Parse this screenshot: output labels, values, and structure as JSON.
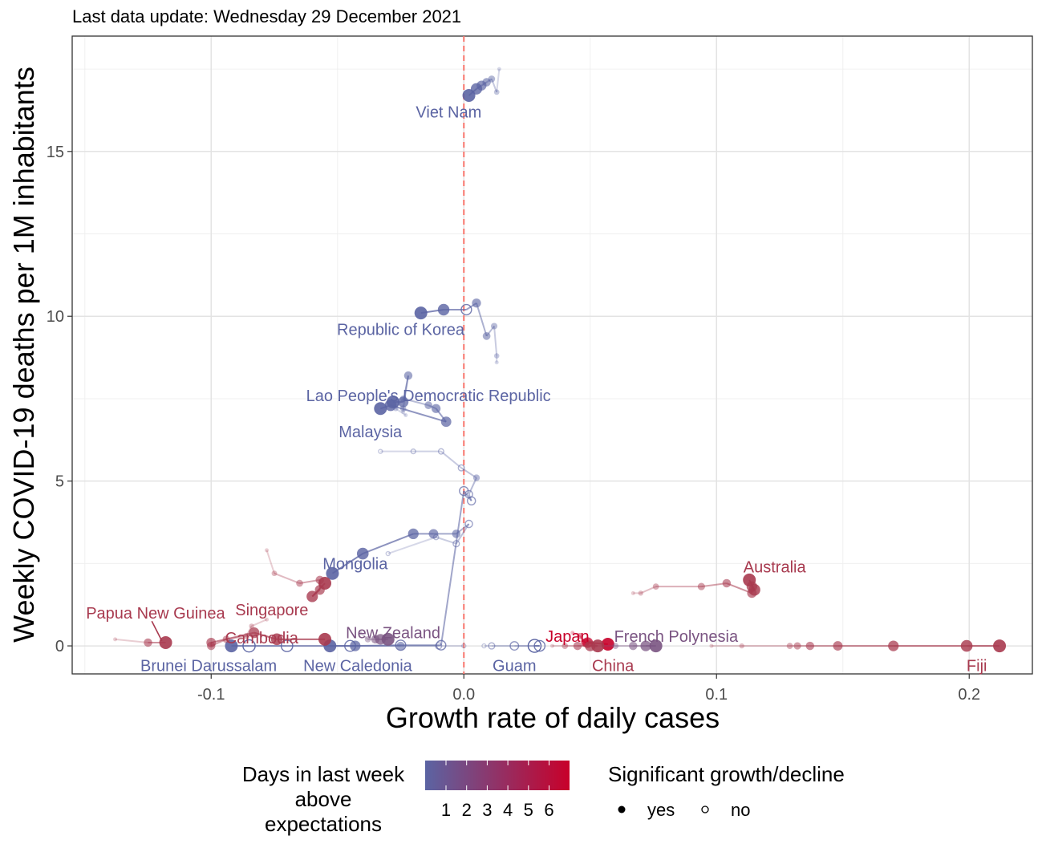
{
  "subtitle": "Last data update: Wednesday 29 December 2021",
  "chart_data": {
    "type": "scatter",
    "xlabel": "Growth rate of daily cases",
    "ylabel": "Weekly COVID-19 deaths per 1M inhabitants",
    "xlim": [
      -0.155,
      0.225
    ],
    "ylim": [
      -0.85,
      18.5
    ],
    "x_ticks": [
      -0.1,
      0.0,
      0.1,
      0.2
    ],
    "x_tick_labels": [
      "-0.1",
      "0.0",
      "0.1",
      "0.2"
    ],
    "y_ticks": [
      0,
      5,
      10,
      15
    ],
    "y_tick_labels": [
      "0",
      "5",
      "10",
      "15"
    ],
    "grid": true,
    "reference_line": {
      "x": 0,
      "style": "dashed",
      "color": "#f8766d"
    },
    "color_scale": {
      "title": "Days in last week above expectations",
      "title_lines": [
        "Days in last week",
        "above",
        "expectations"
      ],
      "low": "#5b64a3",
      "high": "#c8002a",
      "labels": [
        "1",
        "2",
        "3",
        "4",
        "5",
        "6"
      ]
    },
    "shape_legend": {
      "title": "Significant growth/decline",
      "items": [
        {
          "label": "yes",
          "filled": true
        },
        {
          "label": "no",
          "filled": false
        }
      ]
    },
    "series": [
      {
        "name": "Viet Nam",
        "color": "#5b64a3",
        "points": [
          [
            0.014,
            17.5
          ],
          [
            0.013,
            16.8
          ],
          [
            0.011,
            17.2
          ],
          [
            0.009,
            17.1
          ],
          [
            0.007,
            17.0
          ],
          [
            0.005,
            16.9
          ],
          [
            0.002,
            16.7
          ]
        ],
        "sig": [
          true,
          true,
          true,
          true,
          true,
          true,
          true
        ],
        "label": {
          "text": "Viet Nam",
          "x": -0.006,
          "y": 16.2
        }
      },
      {
        "name": "Republic of Korea",
        "color": "#5b64a3",
        "points": [
          [
            0.013,
            8.6
          ],
          [
            0.013,
            8.8
          ],
          [
            0.012,
            9.7
          ],
          [
            0.009,
            9.4
          ],
          [
            0.005,
            10.4
          ],
          [
            0.001,
            10.2
          ],
          [
            -0.008,
            10.2
          ],
          [
            -0.017,
            10.1
          ]
        ],
        "sig": [
          true,
          true,
          true,
          true,
          true,
          false,
          true,
          true
        ],
        "label": {
          "text": "Republic of Korea",
          "x": -0.025,
          "y": 9.6
        }
      },
      {
        "name": "Lao People's Democratic Republic",
        "color": "#5b64a3",
        "points": [
          [
            -0.024,
            7.1
          ],
          [
            -0.024,
            7.2
          ],
          [
            -0.022,
            8.2
          ],
          [
            -0.024,
            7.4
          ],
          [
            -0.028,
            7.4
          ]
        ],
        "sig": [
          true,
          true,
          true,
          true,
          true
        ],
        "label": {
          "text": "Lao People's Democratic Republic",
          "x": -0.014,
          "y": 7.6
        }
      },
      {
        "name": "Malaysia",
        "color": "#5b64a3",
        "points": [
          [
            -0.023,
            7.0
          ],
          [
            -0.027,
            7.2
          ],
          [
            -0.024,
            7.5
          ],
          [
            -0.014,
            7.3
          ],
          [
            -0.011,
            7.2
          ],
          [
            -0.007,
            6.8
          ],
          [
            -0.029,
            7.3
          ],
          [
            -0.033,
            7.2
          ]
        ],
        "sig": [
          true,
          true,
          true,
          true,
          true,
          true,
          true,
          true
        ],
        "label": {
          "text": "Malaysia",
          "x": -0.037,
          "y": 6.5
        }
      },
      {
        "name": "Brunei Darussalam",
        "color": "#5b64a3",
        "points": [
          [
            -0.033,
            5.9
          ],
          [
            -0.02,
            5.9
          ],
          [
            -0.009,
            5.9
          ],
          [
            -0.001,
            5.4
          ],
          [
            0.005,
            5.1
          ],
          [
            0.002,
            4.6
          ],
          [
            0.003,
            4.4
          ],
          [
            0.0,
            4.7
          ],
          [
            -0.009,
            0.02
          ],
          [
            -0.025,
            0.02
          ],
          [
            -0.045,
            0.0
          ],
          [
            -0.07,
            0.0
          ],
          [
            -0.085,
            0.0
          ],
          [
            -0.092,
            0.0
          ]
        ],
        "sig": [
          false,
          false,
          false,
          false,
          true,
          false,
          false,
          false,
          false,
          false,
          false,
          false,
          false,
          true
        ],
        "label": {
          "text": "Brunei Darussalam",
          "x": -0.101,
          "y": -0.6
        }
      },
      {
        "name": "Mongolia",
        "color": "#5b64a3",
        "points": [
          [
            -0.03,
            2.8
          ],
          [
            -0.011,
            3.3
          ],
          [
            -0.003,
            3.1
          ],
          [
            0.002,
            3.7
          ],
          [
            -0.003,
            3.4
          ],
          [
            -0.012,
            3.4
          ],
          [
            -0.02,
            3.4
          ],
          [
            -0.04,
            2.8
          ],
          [
            -0.052,
            2.2
          ]
        ],
        "sig": [
          false,
          false,
          false,
          false,
          true,
          true,
          true,
          true,
          true
        ],
        "label": {
          "text": "Mongolia",
          "x": -0.043,
          "y": 2.5
        }
      },
      {
        "name": "New Caledonia",
        "color": "#5b64a3",
        "points": [
          [
            0.0,
            0.0
          ],
          [
            -0.01,
            0.0
          ],
          [
            -0.025,
            0.0
          ],
          [
            -0.043,
            0.0
          ],
          [
            -0.053,
            0.0
          ]
        ],
        "sig": [
          false,
          false,
          true,
          true,
          true
        ],
        "label": {
          "text": "New Caledonia",
          "x": -0.042,
          "y": -0.6
        }
      },
      {
        "name": "Guam",
        "color": "#5b64a3",
        "points": [
          [
            0.008,
            0.0
          ],
          [
            0.011,
            0.0
          ],
          [
            0.02,
            0.0
          ],
          [
            0.03,
            0.0
          ],
          [
            0.028,
            0.0
          ]
        ],
        "sig": [
          false,
          false,
          false,
          false,
          false
        ],
        "label": {
          "text": "Guam",
          "x": 0.02,
          "y": -0.6
        }
      },
      {
        "name": "Papua New Guinea",
        "color": "#a83a4f",
        "points": [
          [
            -0.138,
            0.2
          ],
          [
            -0.125,
            0.1
          ],
          [
            -0.118,
            0.1
          ]
        ],
        "sig": [
          true,
          true,
          true
        ],
        "label": {
          "text": "Papua New Guinea",
          "x": -0.122,
          "y": 1.0
        }
      },
      {
        "name": "Singapore",
        "color": "#a83a4f",
        "points": [
          [
            -0.078,
            2.9
          ],
          [
            -0.075,
            2.2
          ],
          [
            -0.065,
            1.9
          ],
          [
            -0.057,
            2.0
          ],
          [
            -0.057,
            1.7
          ],
          [
            -0.06,
            1.5
          ],
          [
            -0.055,
            1.9
          ]
        ],
        "sig": [
          true,
          true,
          true,
          true,
          true,
          true,
          true
        ],
        "label": {
          "text": "Singapore",
          "x": -0.076,
          "y": 1.1
        }
      },
      {
        "name": "Cambodia",
        "color": "#a83a4f",
        "points": [
          [
            -0.078,
            0.8
          ],
          [
            -0.084,
            0.6
          ],
          [
            -0.086,
            0.3
          ],
          [
            -0.094,
            0.2
          ],
          [
            -0.1,
            0.0
          ],
          [
            -0.1,
            0.1
          ],
          [
            -0.083,
            0.4
          ],
          [
            -0.074,
            0.2
          ],
          [
            -0.055,
            0.2
          ]
        ],
        "sig": [
          true,
          true,
          true,
          true,
          true,
          true,
          true,
          true,
          true
        ],
        "label": {
          "text": "Cambodia",
          "x": -0.08,
          "y": 0.25
        }
      },
      {
        "name": "New Zealand",
        "color": "#7a5482",
        "points": [
          [
            -0.041,
            0.4
          ],
          [
            -0.038,
            0.2
          ],
          [
            -0.035,
            0.2
          ],
          [
            -0.033,
            0.2
          ],
          [
            -0.03,
            0.2
          ]
        ],
        "sig": [
          true,
          true,
          true,
          true,
          true
        ],
        "label": {
          "text": "New Zealand",
          "x": -0.028,
          "y": 0.4
        }
      },
      {
        "name": "Japan",
        "color": "#c8002a",
        "points": [
          [
            0.043,
            0.4
          ],
          [
            0.046,
            0.3
          ],
          [
            0.048,
            0.1
          ],
          [
            0.049,
            0.1
          ],
          [
            0.057,
            0.05
          ]
        ],
        "sig": [
          true,
          true,
          true,
          true,
          true
        ],
        "label": {
          "text": "Japan",
          "x": 0.041,
          "y": 0.3
        }
      },
      {
        "name": "French Polynesia",
        "color": "#7a5482",
        "points": [
          [
            0.052,
            0.0
          ],
          [
            0.06,
            0.0
          ],
          [
            0.067,
            0.0
          ],
          [
            0.072,
            0.0
          ],
          [
            0.076,
            0.0
          ]
        ],
        "sig": [
          true,
          true,
          true,
          true,
          true
        ],
        "label": {
          "text": "French Polynesia",
          "x": 0.084,
          "y": 0.3
        }
      },
      {
        "name": "China",
        "color": "#a83a4f",
        "points": [
          [
            0.035,
            0.0
          ],
          [
            0.04,
            0.0
          ],
          [
            0.045,
            0.0
          ],
          [
            0.05,
            0.0
          ],
          [
            0.053,
            0.0
          ]
        ],
        "sig": [
          true,
          true,
          true,
          true,
          true
        ],
        "label": {
          "text": "China",
          "x": 0.059,
          "y": -0.6
        }
      },
      {
        "name": "Australia",
        "color": "#a83a4f",
        "points": [
          [
            0.067,
            1.6
          ],
          [
            0.07,
            1.6
          ],
          [
            0.076,
            1.8
          ],
          [
            0.094,
            1.8
          ],
          [
            0.104,
            1.9
          ],
          [
            0.114,
            1.6
          ],
          [
            0.114,
            1.8
          ],
          [
            0.115,
            1.7
          ],
          [
            0.113,
            2.0
          ]
        ],
        "sig": [
          true,
          true,
          true,
          true,
          true,
          true,
          true,
          true,
          true
        ],
        "label": {
          "text": "Australia",
          "x": 0.123,
          "y": 2.4
        }
      },
      {
        "name": "Fiji",
        "color": "#a83a4f",
        "points": [
          [
            0.098,
            0.0
          ],
          [
            0.11,
            0.0
          ],
          [
            0.129,
            0.0
          ],
          [
            0.132,
            0.0
          ],
          [
            0.137,
            0.0
          ],
          [
            0.148,
            0.0
          ],
          [
            0.17,
            0.0
          ],
          [
            0.199,
            0.0
          ],
          [
            0.212,
            0.0
          ]
        ],
        "sig": [
          true,
          true,
          true,
          true,
          true,
          true,
          true,
          true,
          true
        ],
        "label": {
          "text": "Fiji",
          "x": 0.203,
          "y": -0.6
        }
      }
    ]
  }
}
